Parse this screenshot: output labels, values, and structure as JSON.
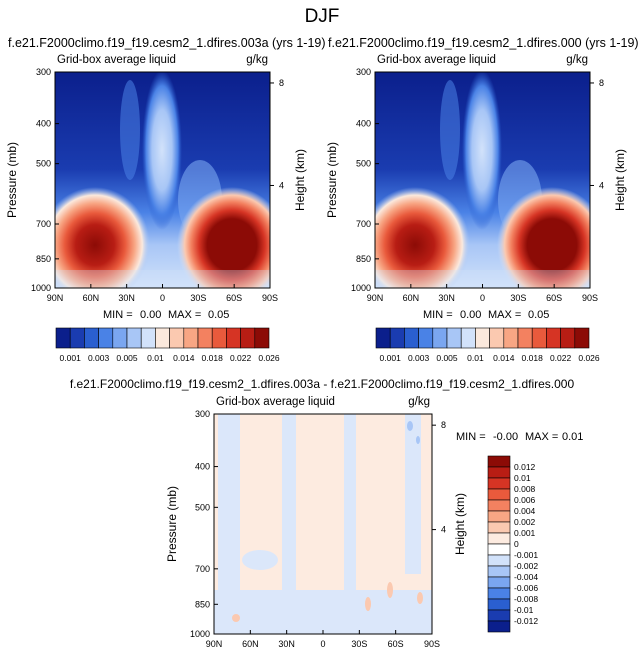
{
  "figure": {
    "title": "DJF"
  },
  "chart_data": [
    {
      "type": "heatmap",
      "title": "f.e21.F2000climo.f19_f19.cesm2_1.dfires.003a (yrs 1-19)",
      "subtitle": "Grid-box average liquid",
      "units": "g/kg",
      "ylabel": "Pressure (mb)",
      "y2label": "Height (km)",
      "xticks": [
        "90N",
        "60N",
        "30N",
        "0",
        "30S",
        "60S",
        "90S"
      ],
      "yticks": [
        "300",
        "400",
        "500",
        "700",
        "850",
        "1000"
      ],
      "y2ticks": [
        "8",
        "4"
      ],
      "minmax": {
        "min_label": "MIN =",
        "min": "0.00",
        "max_label": "MAX =",
        "max": "0.05"
      },
      "colorbar": {
        "labels": [
          "0.001",
          "0.003",
          "0.005",
          "0.01",
          "0.014",
          "0.018",
          "0.022",
          "0.026"
        ],
        "colors": [
          "#0b1f8c",
          "#1a3cb0",
          "#2a5fd0",
          "#4a82e6",
          "#7aa6f0",
          "#a8c6f6",
          "#d2e2fa",
          "#fbe9dd",
          "#fbc9b0",
          "#f8a684",
          "#f38160",
          "#e95a3c",
          "#d63424",
          "#b81d14",
          "#8c0b06"
        ]
      },
      "structure": "liquid water maxima near 850 mb in both hemispheres midlatitudes, weaker values aloft"
    },
    {
      "type": "heatmap",
      "title": "f.e21.F2000climo.f19_f19.cesm2_1.dfires.000 (yrs 1-19)",
      "subtitle": "Grid-box average liquid",
      "units": "g/kg",
      "ylabel": "Pressure (mb)",
      "y2label": "Height (km)",
      "xticks": [
        "90N",
        "60N",
        "30N",
        "0",
        "30S",
        "60S",
        "90S"
      ],
      "yticks": [
        "300",
        "400",
        "500",
        "700",
        "850",
        "1000"
      ],
      "y2ticks": [
        "8",
        "4"
      ],
      "minmax": {
        "min_label": "MIN =",
        "min": "0.00",
        "max_label": "MAX =",
        "max": "0.05"
      },
      "colorbar": {
        "labels": [
          "0.001",
          "0.003",
          "0.005",
          "0.01",
          "0.014",
          "0.018",
          "0.022",
          "0.026"
        ],
        "colors": [
          "#0b1f8c",
          "#1a3cb0",
          "#2a5fd0",
          "#4a82e6",
          "#7aa6f0",
          "#a8c6f6",
          "#d2e2fa",
          "#fbe9dd",
          "#fbc9b0",
          "#f8a684",
          "#f38160",
          "#e95a3c",
          "#d63424",
          "#b81d14",
          "#8c0b06"
        ]
      }
    },
    {
      "type": "heatmap",
      "title": "f.e21.F2000climo.f19_f19.cesm2_1.dfires.003a - f.e21.F2000climo.f19_f19.cesm2_1.dfires.000",
      "subtitle": "Grid-box average liquid",
      "units": "g/kg",
      "ylabel": "Pressure (mb)",
      "y2label": "Height (km)",
      "xticks": [
        "90N",
        "60N",
        "30N",
        "0",
        "30S",
        "60S",
        "90S"
      ],
      "yticks": [
        "300",
        "400",
        "500",
        "700",
        "850",
        "1000"
      ],
      "y2ticks": [
        "8",
        "4"
      ],
      "minmax": {
        "min_label": "MIN =",
        "min": "-0.00",
        "max_label": "MAX =",
        "max": "0.01"
      },
      "colorbar": {
        "labels": [
          "0.012",
          "0.01",
          "0.008",
          "0.006",
          "0.004",
          "0.002",
          "0.001",
          "0",
          "-0.001",
          "-0.002",
          "-0.004",
          "-0.006",
          "-0.008",
          "-0.01",
          "-0.012"
        ],
        "colors": [
          "#8c0b06",
          "#b81d14",
          "#d63424",
          "#e95a3c",
          "#f38160",
          "#f8a684",
          "#fbc9b0",
          "#fdebe0",
          "#ffffff",
          "#d2e2fa",
          "#a8c6f6",
          "#7aa6f0",
          "#4a82e6",
          "#2a5fd0",
          "#1a3cb0",
          "#0b1f8c"
        ]
      }
    }
  ]
}
